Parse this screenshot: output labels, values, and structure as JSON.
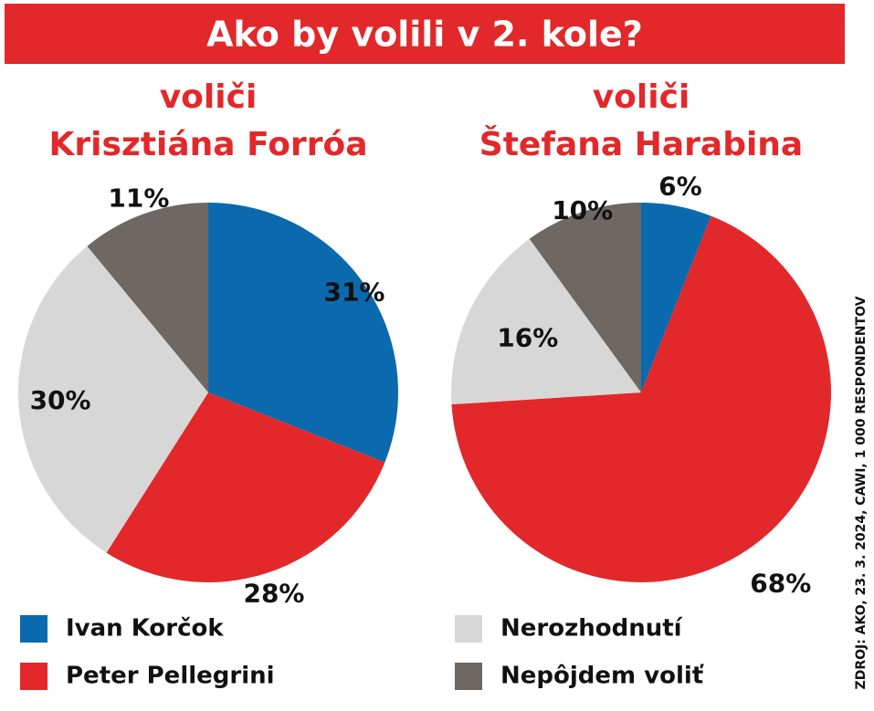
{
  "title": "Ako by volili v 2. kole?",
  "source": "ZDROJ: AKO, 23. 3. 2024, CAWI, 1 000 RESPONDENTOV",
  "chart_data": [
    {
      "type": "pie",
      "title": [
        "voliči",
        "Krisztiána Forróa"
      ],
      "categories": [
        "Ivan Korčok",
        "Peter Pellegrini",
        "Nerozhodnutí",
        "Nepôjdem voliť"
      ],
      "values": [
        31,
        28,
        30,
        11
      ],
      "value_labels": [
        "31%",
        "28%",
        "30%",
        "11%"
      ],
      "colors": [
        "#0b69ad",
        "#e2282a",
        "#d7d7d7",
        "#6d6864"
      ]
    },
    {
      "type": "pie",
      "title": [
        "voliči",
        "Štefana Harabina"
      ],
      "categories": [
        "Ivan Korčok",
        "Peter Pellegrini",
        "Nerozhodnutí",
        "Nepôjdem voliť"
      ],
      "values": [
        6,
        68,
        16,
        10
      ],
      "value_labels": [
        "6%",
        "68%",
        "16%",
        "10%"
      ],
      "colors": [
        "#0b69ad",
        "#e2282a",
        "#d7d7d7",
        "#6d6864"
      ]
    }
  ]
}
